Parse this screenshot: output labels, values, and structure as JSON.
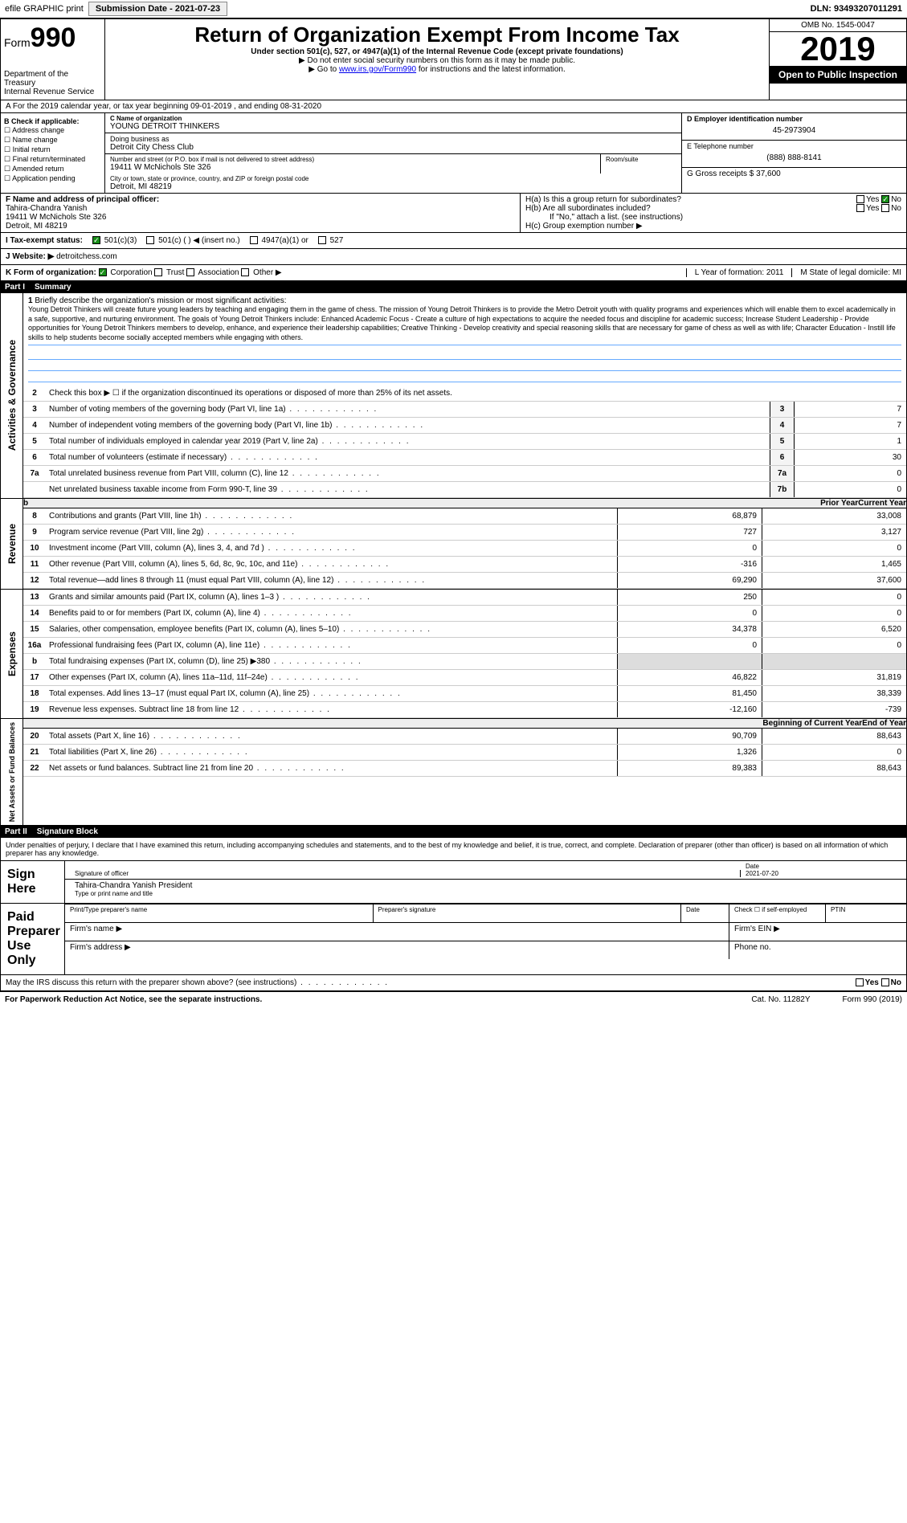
{
  "topbar": {
    "efile": "efile GRAPHIC print",
    "submission_label": "Submission Date - 2021-07-23",
    "dln": "DLN: 93493207011291"
  },
  "header": {
    "form_label": "Form",
    "form_num": "990",
    "dept1": "Department of the Treasury",
    "dept2": "Internal Revenue Service",
    "title": "Return of Organization Exempt From Income Tax",
    "subtitle": "Under section 501(c), 527, or 4947(a)(1) of the Internal Revenue Code (except private foundations)",
    "note1": "▶ Do not enter social security numbers on this form as it may be made public.",
    "note2_pre": "▶ Go to ",
    "note2_link": "www.irs.gov/Form990",
    "note2_post": " for instructions and the latest information.",
    "omb": "OMB No. 1545-0047",
    "year": "2019",
    "open": "Open to Public Inspection"
  },
  "row_a": "A For the 2019 calendar year, or tax year beginning 09-01-2019   , and ending 08-31-2020",
  "col_b": {
    "header": "B Check if applicable:",
    "items": [
      "☐ Address change",
      "☐ Name change",
      "☐ Initial return",
      "☐ Final return/terminated",
      "☐ Amended return",
      "☐ Application pending"
    ]
  },
  "col_c": {
    "name_label": "C Name of organization",
    "name": "YOUNG DETROIT THINKERS",
    "dba_label": "Doing business as",
    "dba": "Detroit City Chess Club",
    "addr_label": "Number and street (or P.O. box if mail is not delivered to street address)",
    "addr": "19411 W McNichols Ste 326",
    "room_label": "Room/suite",
    "city_label": "City or town, state or province, country, and ZIP or foreign postal code",
    "city": "Detroit, MI  48219"
  },
  "col_d": {
    "d_label": "D Employer identification number",
    "d_val": "45-2973904",
    "e_label": "E Telephone number",
    "e_val": "(888) 888-8141",
    "g_label": "G Gross receipts $ 37,600"
  },
  "row_f": {
    "f_label": "F  Name and address of principal officer:",
    "f_name": "Tahira-Chandra Yanish",
    "f_addr1": "19411 W McNichols Ste 326",
    "f_addr2": "Detroit, MI  48219"
  },
  "row_h": {
    "ha": "H(a)  Is this a group return for subordinates?",
    "hb": "H(b)  Are all subordinates included?",
    "hb_note": "If \"No,\" attach a list. (see instructions)",
    "hc": "H(c)  Group exemption number ▶",
    "yes": "Yes",
    "no": "No"
  },
  "row_i": {
    "label": "I  Tax-exempt status:",
    "opt1": "501(c)(3)",
    "opt2": "501(c) (  ) ◀ (insert no.)",
    "opt3": "4947(a)(1) or",
    "opt4": "527"
  },
  "row_j": {
    "label": "J  Website: ▶",
    "val": "detroitchess.com"
  },
  "row_k": {
    "label": "K Form of organization:",
    "opts": [
      "Corporation",
      "Trust",
      "Association",
      "Other ▶"
    ],
    "l": "L Year of formation: 2011",
    "m": "M State of legal domicile: MI"
  },
  "part1": {
    "label": "Part I",
    "title": "Summary"
  },
  "mission": {
    "num": "1",
    "label": "Briefly describe the organization's mission or most significant activities:",
    "text": "Young Detroit Thinkers will create future young leaders by teaching and engaging them in the game of chess. The mission of Young Detroit Thinkers is to provide the Metro Detroit youth with quality programs and experiences which will enable them to excel academically in a safe, supportive, and nurturing environment. The goals of Young Detroit Thinkers include: Enhanced Academic Focus - Create a culture of high expectations to acquire the needed focus and discipline for academic success; Increase Student Leadership - Provide opportunities for Young Detroit Thinkers members to develop, enhance, and experience their leadership capabilities; Creative Thinking - Develop creativity and special reasoning skills that are necessary for game of chess as well as with life; Character Education - Instill life skills to help students become socially accepted members while engaging with others."
  },
  "side_labels": {
    "activities": "Activities & Governance",
    "revenue": "Revenue",
    "expenses": "Expenses",
    "netassets": "Net Assets or Fund Balances"
  },
  "gov_lines": [
    {
      "n": "2",
      "d": "Check this box ▶ ☐ if the organization discontinued its operations or disposed of more than 25% of its net assets."
    },
    {
      "n": "3",
      "d": "Number of voting members of the governing body (Part VI, line 1a)",
      "box": "3",
      "v": "7"
    },
    {
      "n": "4",
      "d": "Number of independent voting members of the governing body (Part VI, line 1b)",
      "box": "4",
      "v": "7"
    },
    {
      "n": "5",
      "d": "Total number of individuals employed in calendar year 2019 (Part V, line 2a)",
      "box": "5",
      "v": "1"
    },
    {
      "n": "6",
      "d": "Total number of volunteers (estimate if necessary)",
      "box": "6",
      "v": "30"
    },
    {
      "n": "7a",
      "d": "Total unrelated business revenue from Part VIII, column (C), line 12",
      "box": "7a",
      "v": "0"
    },
    {
      "n": "",
      "d": "Net unrelated business taxable income from Form 990-T, line 39",
      "box": "7b",
      "v": "0"
    }
  ],
  "year_hdr": {
    "prior": "Prior Year",
    "current": "Current Year"
  },
  "rev_lines": [
    {
      "n": "8",
      "d": "Contributions and grants (Part VIII, line 1h)",
      "p": "68,879",
      "c": "33,008"
    },
    {
      "n": "9",
      "d": "Program service revenue (Part VIII, line 2g)",
      "p": "727",
      "c": "3,127"
    },
    {
      "n": "10",
      "d": "Investment income (Part VIII, column (A), lines 3, 4, and 7d )",
      "p": "0",
      "c": "0"
    },
    {
      "n": "11",
      "d": "Other revenue (Part VIII, column (A), lines 5, 6d, 8c, 9c, 10c, and 11e)",
      "p": "-316",
      "c": "1,465"
    },
    {
      "n": "12",
      "d": "Total revenue—add lines 8 through 11 (must equal Part VIII, column (A), line 12)",
      "p": "69,290",
      "c": "37,600"
    }
  ],
  "exp_lines": [
    {
      "n": "13",
      "d": "Grants and similar amounts paid (Part IX, column (A), lines 1–3 )",
      "p": "250",
      "c": "0"
    },
    {
      "n": "14",
      "d": "Benefits paid to or for members (Part IX, column (A), line 4)",
      "p": "0",
      "c": "0"
    },
    {
      "n": "15",
      "d": "Salaries, other compensation, employee benefits (Part IX, column (A), lines 5–10)",
      "p": "34,378",
      "c": "6,520"
    },
    {
      "n": "16a",
      "d": "Professional fundraising fees (Part IX, column (A), line 11e)",
      "p": "0",
      "c": "0"
    },
    {
      "n": "b",
      "d": "Total fundraising expenses (Part IX, column (D), line 25) ▶380",
      "p": "",
      "c": "",
      "gray": true
    },
    {
      "n": "17",
      "d": "Other expenses (Part IX, column (A), lines 11a–11d, 11f–24e)",
      "p": "46,822",
      "c": "31,819"
    },
    {
      "n": "18",
      "d": "Total expenses. Add lines 13–17 (must equal Part IX, column (A), line 25)",
      "p": "81,450",
      "c": "38,339"
    },
    {
      "n": "19",
      "d": "Revenue less expenses. Subtract line 18 from line 12",
      "p": "-12,160",
      "c": "-739"
    }
  ],
  "net_hdr": {
    "begin": "Beginning of Current Year",
    "end": "End of Year"
  },
  "net_lines": [
    {
      "n": "20",
      "d": "Total assets (Part X, line 16)",
      "p": "90,709",
      "c": "88,643"
    },
    {
      "n": "21",
      "d": "Total liabilities (Part X, line 26)",
      "p": "1,326",
      "c": "0"
    },
    {
      "n": "22",
      "d": "Net assets or fund balances. Subtract line 21 from line 20",
      "p": "89,383",
      "c": "88,643"
    }
  ],
  "part2": {
    "label": "Part II",
    "title": "Signature Block"
  },
  "sig": {
    "penalty": "Under penalties of perjury, I declare that I have examined this return, including accompanying schedules and statements, and to the best of my knowledge and belief, it is true, correct, and complete. Declaration of preparer (other than officer) is based on all information of which preparer has any knowledge.",
    "sign_here": "Sign Here",
    "sig_officer": "Signature of officer",
    "date": "Date",
    "date_val": "2021-07-20",
    "name_title": "Tahira-Chandra Yanish  President",
    "type_name": "Type or print name and title",
    "paid": "Paid Preparer Use Only",
    "prep_name": "Print/Type preparer's name",
    "prep_sig": "Preparer's signature",
    "prep_date": "Date",
    "check_self": "Check ☐ if self-employed",
    "ptin": "PTIN",
    "firm_name": "Firm's name  ▶",
    "firm_ein": "Firm's EIN ▶",
    "firm_addr": "Firm's address ▶",
    "phone": "Phone no.",
    "discuss": "May the IRS discuss this return with the preparer shown above? (see instructions)"
  },
  "footer": {
    "left": "For Paperwork Reduction Act Notice, see the separate instructions.",
    "mid": "Cat. No. 11282Y",
    "right": "Form 990 (2019)"
  }
}
